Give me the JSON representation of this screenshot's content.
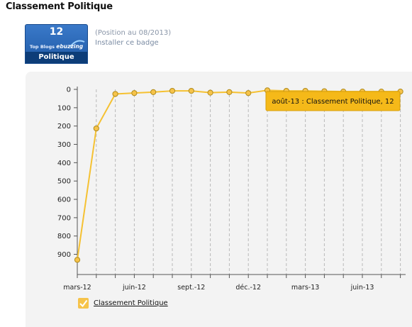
{
  "page": {
    "title": "Classement Politique"
  },
  "badge": {
    "rank": "12",
    "brand_prefix": "Top Blogs ",
    "brand_name": "ebuzzing",
    "category": "Politique",
    "position_note": "(Position au 08/2013)",
    "install_link": "Installer ce badge",
    "color": "#2a69b8"
  },
  "tooltip": {
    "text": "août-13 : Classement Politique, 12"
  },
  "legend": {
    "label": "Classement Politique"
  },
  "colors": {
    "line": "#f5c132",
    "marker_fill": "#f6c34a",
    "marker_stroke": "#b08a1a",
    "tooltip_bg": "#f5b919"
  },
  "chart_data": {
    "type": "line",
    "title": "",
    "xlabel": "",
    "ylabel": "",
    "y_reversed": true,
    "ylim": [
      0,
      1000
    ],
    "yticks": [
      0,
      100,
      200,
      300,
      400,
      500,
      600,
      700,
      800,
      900
    ],
    "x_tick_labels": [
      "mars-12",
      "juin-12",
      "sept.-12",
      "déc.-12",
      "mars-13",
      "juin-13"
    ],
    "grid": "vertical dashed",
    "legend_position": "bottom-left",
    "series": [
      {
        "name": "Classement Politique",
        "x": [
          "mars-12",
          "avr.-12",
          "mai-12",
          "juin-12",
          "juil.-12",
          "août-12",
          "sept.-12",
          "oct.-12",
          "nov.-12",
          "déc.-12",
          "janv.-13",
          "févr.-13",
          "mars-13",
          "avr.-13",
          "mai-13",
          "juin-13",
          "juil.-13",
          "août-13"
        ],
        "values": [
          930,
          213,
          25,
          20,
          15,
          8,
          8,
          18,
          15,
          20,
          5,
          8,
          8,
          10,
          12,
          12,
          12,
          12
        ]
      }
    ]
  }
}
